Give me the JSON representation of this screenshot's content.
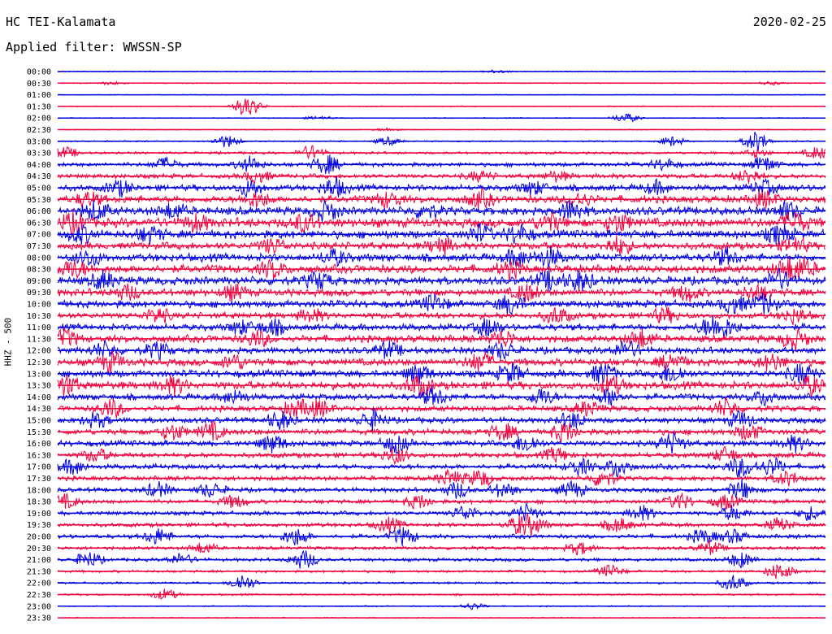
{
  "header": {
    "station": "HC TEI-Kalamata",
    "date": "2020-02-25",
    "filter": "Applied filter: WWSSN-SP"
  },
  "chart_data": {
    "type": "line",
    "title": "HC TEI-Kalamata",
    "ylabel": "HHZ - 500",
    "colors": [
      "#0000e0",
      "#f0003c"
    ],
    "rows": [
      {
        "time": "00:00",
        "activity": 0.5,
        "events": [
          [
            0.57,
            2
          ]
        ]
      },
      {
        "time": "00:30",
        "activity": 0.5,
        "events": [
          [
            0.07,
            2
          ],
          [
            0.93,
            2
          ]
        ]
      },
      {
        "time": "01:00",
        "activity": 0.4,
        "events": []
      },
      {
        "time": "01:30",
        "activity": 0.5,
        "events": [
          [
            0.25,
            9
          ],
          [
            0.24,
            5
          ]
        ]
      },
      {
        "time": "02:00",
        "activity": 0.5,
        "events": [
          [
            0.74,
            6
          ],
          [
            0.34,
            2
          ]
        ]
      },
      {
        "time": "02:30",
        "activity": 0.4,
        "events": [
          [
            0.43,
            2
          ]
        ]
      },
      {
        "time": "03:00",
        "activity": 0.7,
        "events": [
          [
            0.22,
            8
          ],
          [
            0.8,
            6
          ],
          [
            0.91,
            13
          ],
          [
            0.43,
            5
          ]
        ]
      },
      {
        "time": "03:30",
        "activity": 1.2,
        "events": [
          [
            0.01,
            7
          ],
          [
            0.33,
            9
          ],
          [
            0.99,
            8
          ],
          [
            0.91,
            5
          ]
        ]
      },
      {
        "time": "04:00",
        "activity": 2,
        "events": [
          [
            0.14,
            8
          ],
          [
            0.25,
            9
          ],
          [
            0.35,
            12
          ],
          [
            0.92,
            10
          ],
          [
            0.79,
            7
          ]
        ]
      },
      {
        "time": "04:30",
        "activity": 2.2,
        "events": [
          [
            0.26,
            8
          ],
          [
            0.55,
            6
          ],
          [
            0.9,
            9
          ],
          [
            0.65,
            6
          ]
        ]
      },
      {
        "time": "05:00",
        "activity": 3,
        "events": [
          [
            0.08,
            9
          ],
          [
            0.25,
            10
          ],
          [
            0.36,
            12
          ],
          [
            0.62,
            8
          ],
          [
            0.92,
            9
          ],
          [
            0.78,
            7
          ]
        ]
      },
      {
        "time": "05:30",
        "activity": 3.5,
        "events": [
          [
            0.04,
            8
          ],
          [
            0.43,
            9
          ],
          [
            0.55,
            10
          ],
          [
            0.68,
            8
          ],
          [
            0.92,
            9
          ],
          [
            0.26,
            9
          ]
        ]
      },
      {
        "time": "06:00",
        "activity": 4,
        "events": [
          [
            0.05,
            11
          ],
          [
            0.15,
            9
          ],
          [
            0.35,
            11
          ],
          [
            0.48,
            8
          ],
          [
            0.67,
            12
          ],
          [
            0.95,
            10
          ]
        ]
      },
      {
        "time": "06:30",
        "activity": 4.5,
        "events": [
          [
            0.02,
            11
          ],
          [
            0.18,
            9
          ],
          [
            0.32,
            10
          ],
          [
            0.64,
            10
          ],
          [
            0.73,
            11
          ],
          [
            0.96,
            12
          ]
        ]
      },
      {
        "time": "07:00",
        "activity": 4,
        "events": [
          [
            0.03,
            10
          ],
          [
            0.12,
            9
          ],
          [
            0.55,
            10
          ],
          [
            0.6,
            11
          ],
          [
            0.94,
            11
          ]
        ]
      },
      {
        "time": "07:30",
        "activity": 3.5,
        "events": [
          [
            0.28,
            9
          ],
          [
            0.5,
            10
          ],
          [
            0.73,
            11
          ],
          [
            0.96,
            9
          ]
        ]
      },
      {
        "time": "08:00",
        "activity": 3.8,
        "events": [
          [
            0.04,
            10
          ],
          [
            0.36,
            9
          ],
          [
            0.6,
            10
          ],
          [
            0.64,
            11
          ],
          [
            0.87,
            9
          ]
        ]
      },
      {
        "time": "08:30",
        "activity": 4,
        "events": [
          [
            0.02,
            11
          ],
          [
            0.28,
            10
          ],
          [
            0.59,
            9
          ],
          [
            0.95,
            12
          ],
          [
            0.97,
            10
          ]
        ]
      },
      {
        "time": "09:00",
        "activity": 4,
        "events": [
          [
            0.06,
            10
          ],
          [
            0.34,
            10
          ],
          [
            0.64,
            11
          ],
          [
            0.68,
            12
          ],
          [
            0.94,
            11
          ]
        ]
      },
      {
        "time": "09:30",
        "activity": 3.5,
        "events": [
          [
            0.09,
            9
          ],
          [
            0.23,
            9
          ],
          [
            0.61,
            10
          ],
          [
            0.82,
            10
          ],
          [
            0.91,
            9
          ]
        ]
      },
      {
        "time": "10:00",
        "activity": 3.5,
        "events": [
          [
            0.49,
            10
          ],
          [
            0.59,
            12
          ],
          [
            0.88,
            11
          ],
          [
            0.92,
            12
          ]
        ]
      },
      {
        "time": "10:30",
        "activity": 3,
        "events": [
          [
            0.13,
            9
          ],
          [
            0.33,
            8
          ],
          [
            0.65,
            10
          ],
          [
            0.79,
            9
          ],
          [
            0.96,
            9
          ]
        ]
      },
      {
        "time": "11:00",
        "activity": 3.2,
        "events": [
          [
            0.24,
            8
          ],
          [
            0.28,
            9
          ],
          [
            0.56,
            11
          ],
          [
            0.85,
            11
          ],
          [
            0.87,
            10
          ]
        ]
      },
      {
        "time": "11:30",
        "activity": 3.5,
        "events": [
          [
            0.01,
            10
          ],
          [
            0.26,
            9
          ],
          [
            0.58,
            10
          ],
          [
            0.76,
            11
          ],
          [
            0.96,
            12
          ]
        ]
      },
      {
        "time": "12:00",
        "activity": 3.2,
        "events": [
          [
            0.06,
            9
          ],
          [
            0.13,
            9
          ],
          [
            0.43,
            10
          ],
          [
            0.58,
            10
          ],
          [
            0.74,
            11
          ]
        ]
      },
      {
        "time": "12:30",
        "activity": 3.5,
        "events": [
          [
            0.07,
            11
          ],
          [
            0.23,
            9
          ],
          [
            0.55,
            12
          ],
          [
            0.8,
            10
          ],
          [
            0.93,
            10
          ]
        ]
      },
      {
        "time": "13:00",
        "activity": 3.5,
        "events": [
          [
            0.47,
            11
          ],
          [
            0.59,
            12
          ],
          [
            0.71,
            12
          ],
          [
            0.8,
            11
          ],
          [
            0.97,
            12
          ]
        ]
      },
      {
        "time": "13:30",
        "activity": 3.8,
        "events": [
          [
            0.01,
            12
          ],
          [
            0.15,
            10
          ],
          [
            0.47,
            12
          ],
          [
            0.72,
            11
          ],
          [
            0.98,
            11
          ]
        ]
      },
      {
        "time": "14:00",
        "activity": 3,
        "events": [
          [
            0.23,
            8
          ],
          [
            0.49,
            11
          ],
          [
            0.63,
            10
          ],
          [
            0.72,
            10
          ],
          [
            0.92,
            9
          ]
        ]
      },
      {
        "time": "14:30",
        "activity": 2.8,
        "events": [
          [
            0.07,
            11
          ],
          [
            0.31,
            10
          ],
          [
            0.34,
            10
          ],
          [
            0.69,
            9
          ],
          [
            0.87,
            11
          ]
        ]
      },
      {
        "time": "15:00",
        "activity": 2.8,
        "events": [
          [
            0.05,
            9
          ],
          [
            0.29,
            11
          ],
          [
            0.41,
            12
          ],
          [
            0.67,
            10
          ],
          [
            0.89,
            10
          ]
        ]
      },
      {
        "time": "15:30",
        "activity": 2.8,
        "events": [
          [
            0.15,
            10
          ],
          [
            0.2,
            11
          ],
          [
            0.58,
            10
          ],
          [
            0.66,
            12
          ],
          [
            0.9,
            10
          ]
        ]
      },
      {
        "time": "16:00",
        "activity": 2.8,
        "events": [
          [
            0.28,
            11
          ],
          [
            0.44,
            11
          ],
          [
            0.61,
            11
          ],
          [
            0.8,
            12
          ],
          [
            0.96,
            9
          ]
        ]
      },
      {
        "time": "16:30",
        "activity": 2.5,
        "events": [
          [
            0.05,
            8
          ],
          [
            0.44,
            10
          ],
          [
            0.65,
            9
          ],
          [
            0.87,
            9
          ]
        ]
      },
      {
        "time": "17:00",
        "activity": 2.5,
        "events": [
          [
            0.02,
            9
          ],
          [
            0.68,
            10
          ],
          [
            0.73,
            12
          ],
          [
            0.89,
            13
          ],
          [
            0.93,
            11
          ]
        ]
      },
      {
        "time": "17:30",
        "activity": 2.2,
        "events": [
          [
            0.51,
            10
          ],
          [
            0.55,
            11
          ],
          [
            0.71,
            11
          ],
          [
            0.95,
            9
          ]
        ]
      },
      {
        "time": "18:00",
        "activity": 2.2,
        "events": [
          [
            0.13,
            9
          ],
          [
            0.2,
            9
          ],
          [
            0.52,
            10
          ],
          [
            0.58,
            9
          ],
          [
            0.67,
            10
          ],
          [
            0.89,
            12
          ]
        ]
      },
      {
        "time": "18:30",
        "activity": 2,
        "events": [
          [
            0.01,
            8
          ],
          [
            0.23,
            8
          ],
          [
            0.47,
            9
          ],
          [
            0.81,
            10
          ],
          [
            0.87,
            9
          ]
        ]
      },
      {
        "time": "19:00",
        "activity": 2,
        "events": [
          [
            0.53,
            9
          ],
          [
            0.61,
            10
          ],
          [
            0.76,
            9
          ],
          [
            0.88,
            9
          ],
          [
            0.98,
            8
          ]
        ]
      },
      {
        "time": "19:30",
        "activity": 2,
        "events": [
          [
            0.43,
            9
          ],
          [
            0.6,
            10
          ],
          [
            0.62,
            10
          ],
          [
            0.73,
            9
          ],
          [
            0.94,
            8
          ]
        ]
      },
      {
        "time": "20:00",
        "activity": 2,
        "events": [
          [
            0.13,
            10
          ],
          [
            0.31,
            11
          ],
          [
            0.45,
            11
          ],
          [
            0.84,
            9
          ],
          [
            0.88,
            8
          ]
        ]
      },
      {
        "time": "20:30",
        "activity": 1.6,
        "events": [
          [
            0.19,
            7
          ],
          [
            0.68,
            8
          ],
          [
            0.85,
            8
          ]
        ]
      },
      {
        "time": "21:00",
        "activity": 1.6,
        "events": [
          [
            0.04,
            10
          ],
          [
            0.16,
            7
          ],
          [
            0.32,
            12
          ],
          [
            0.89,
            10
          ]
        ]
      },
      {
        "time": "21:30",
        "activity": 1.2,
        "events": [
          [
            0.72,
            8
          ],
          [
            0.94,
            11
          ]
        ]
      },
      {
        "time": "22:00",
        "activity": 1,
        "events": [
          [
            0.24,
            11
          ],
          [
            0.88,
            10
          ]
        ]
      },
      {
        "time": "22:30",
        "activity": 0.9,
        "events": [
          [
            0.14,
            7
          ]
        ]
      },
      {
        "time": "23:00",
        "activity": 0.6,
        "events": [
          [
            0.54,
            4
          ]
        ]
      },
      {
        "time": "23:30",
        "activity": 0.5,
        "events": []
      }
    ]
  }
}
